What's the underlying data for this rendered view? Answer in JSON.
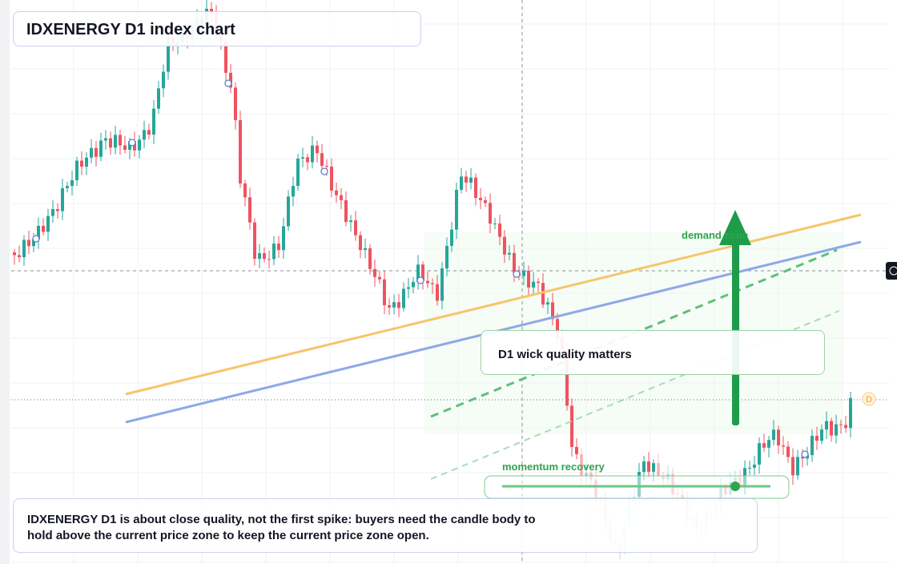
{
  "header": {
    "title": "IDXENERGY D1 index chart"
  },
  "annotations": {
    "zone": "demand zone",
    "note": "D1 wick quality matters",
    "momentum": "momentum recovery",
    "marker": "D"
  },
  "footer": {
    "text": "IDXENERGY D1 is about close quality, not the first spike: buyers need the candle body to hold above the current price zone to keep the current price zone open."
  }
}
